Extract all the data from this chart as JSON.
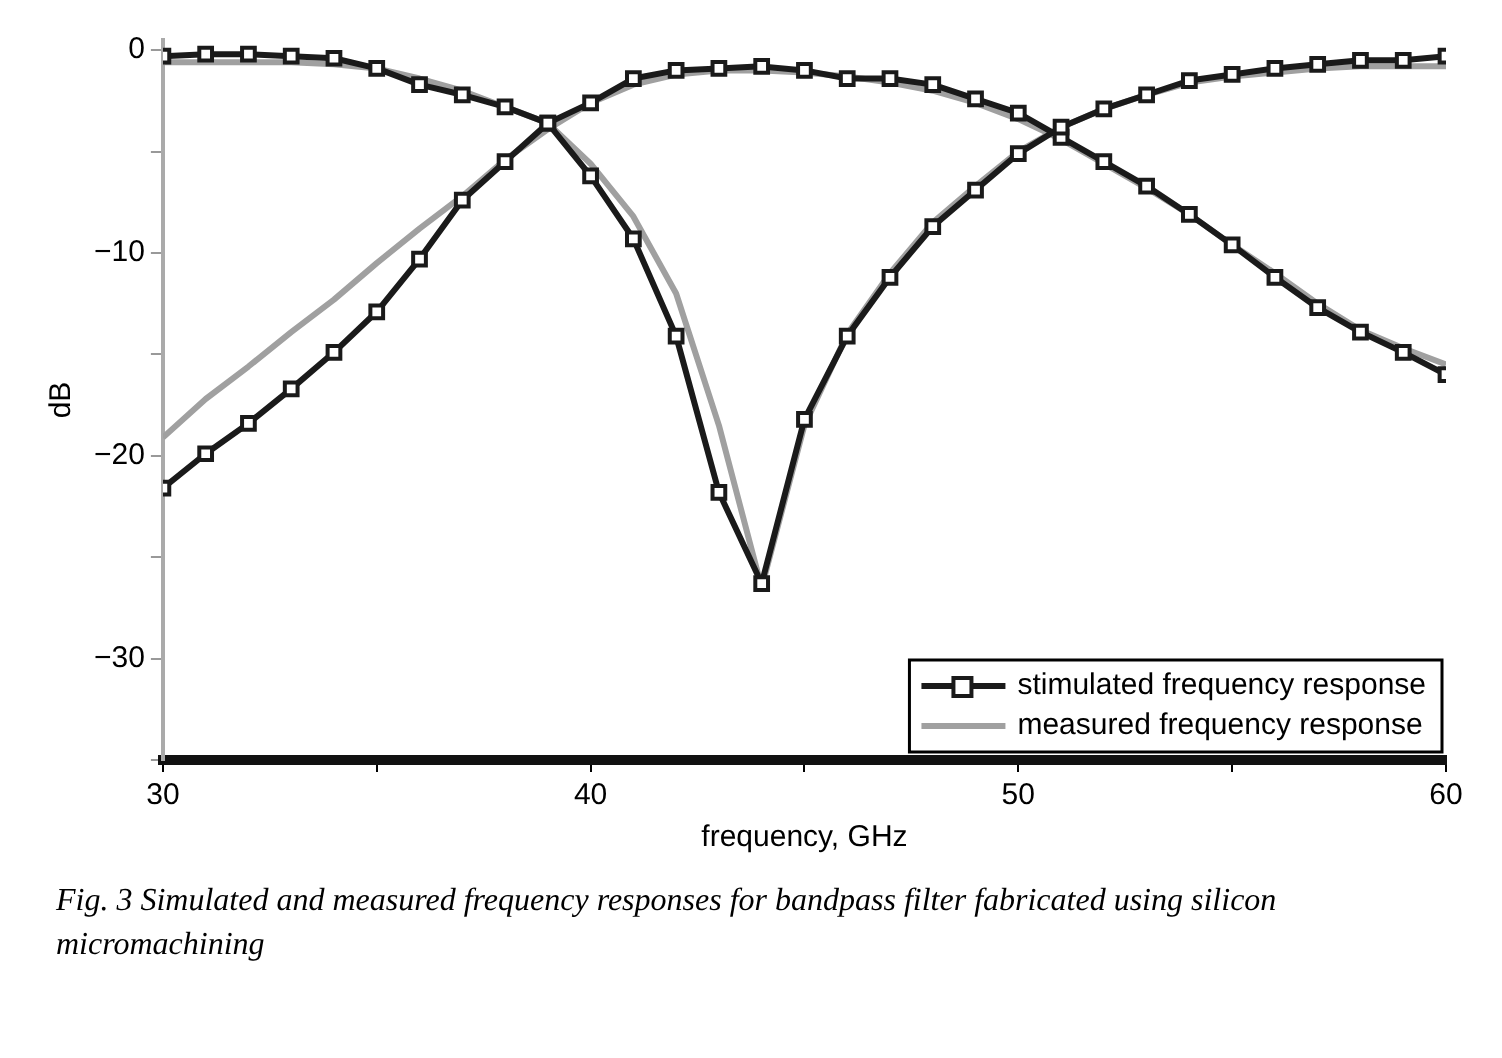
{
  "chart_data": {
    "type": "line",
    "xlabel": "frequency, GHz",
    "ylabel": "dB",
    "x": [
      30,
      31,
      32,
      33,
      34,
      35,
      36,
      37,
      38,
      39,
      40,
      41,
      42,
      43,
      44,
      45,
      46,
      47,
      48,
      49,
      50,
      51,
      52,
      53,
      54,
      55,
      56,
      57,
      58,
      59,
      60
    ],
    "series": [
      {
        "name": "stimulated frequency response",
        "color": "#1a1a1a",
        "marker": "square",
        "values": [
          -0.3,
          -0.2,
          -0.2,
          -0.3,
          -0.4,
          -0.9,
          -1.7,
          -2.2,
          -2.8,
          -3.6,
          -6.2,
          -9.3,
          -14.1,
          -21.8,
          -26.3,
          -18.2,
          -14.1,
          -11.2,
          -8.7,
          -6.9,
          -5.1,
          -3.8,
          -2.9,
          -2.2,
          -1.5,
          -1.2,
          -0.9,
          -0.7,
          -0.5,
          -0.5,
          -0.3
        ]
      },
      {
        "color": "#1a1a1a",
        "marker": "square",
        "values": [
          -21.6,
          -19.9,
          -18.4,
          -16.7,
          -14.9,
          -12.9,
          -10.3,
          -7.4,
          -5.5,
          -3.6,
          -2.6,
          -1.4,
          -1.0,
          -0.9,
          -0.8,
          -1.0,
          -1.4,
          -1.4,
          -1.7,
          -2.4,
          -3.1,
          -4.3,
          -5.5,
          -6.7,
          -8.1,
          -9.6,
          -11.2,
          -12.7,
          -13.9,
          -14.9,
          -16.0
        ]
      },
      {
        "name": "measured frequency response",
        "color": "#a0a0a0",
        "marker": "none",
        "values": [
          -0.6,
          -0.6,
          -0.6,
          -0.6,
          -0.7,
          -0.9,
          -1.4,
          -2.0,
          -2.8,
          -3.6,
          -5.6,
          -8.2,
          -12.0,
          -18.5,
          -26.5,
          -18.5,
          -14.0,
          -11.0,
          -8.5,
          -6.7,
          -5.0,
          -3.8,
          -2.9,
          -2.2,
          -1.6,
          -1.3,
          -1.1,
          -0.9,
          -0.8,
          -0.8,
          -0.8
        ]
      },
      {
        "color": "#a0a0a0",
        "marker": "none",
        "values": [
          -19.1,
          -17.2,
          -15.6,
          -13.9,
          -12.3,
          -10.5,
          -8.8,
          -7.2,
          -5.4,
          -3.9,
          -2.6,
          -1.7,
          -1.2,
          -1.0,
          -1.0,
          -1.1,
          -1.3,
          -1.6,
          -2.0,
          -2.6,
          -3.4,
          -4.4,
          -5.6,
          -6.8,
          -8.1,
          -9.6,
          -11.0,
          -12.5,
          -13.8,
          -14.7,
          -15.5
        ]
      }
    ],
    "xlim": [
      30,
      60
    ],
    "xticks": [
      30,
      {
        "value": 35,
        "label": null
      },
      40,
      {
        "value": 45,
        "label": null
      },
      50,
      {
        "value": 55,
        "label": null
      },
      60
    ],
    "ylim": [
      -35,
      0.5
    ],
    "yticks": [
      {
        "value": -35,
        "label": null
      },
      -30,
      {
        "value": -25,
        "label": null
      },
      -20,
      {
        "value": -15,
        "label": null
      },
      -10,
      {
        "value": -5,
        "label": null
      },
      0
    ],
    "grid": false,
    "legend": "bottom right",
    "line_style": "solid",
    "annotations": [
      "Fig. 3 Simulated and measured frequency responses for bandpass filter fabricated using silicon micromachining"
    ]
  }
}
